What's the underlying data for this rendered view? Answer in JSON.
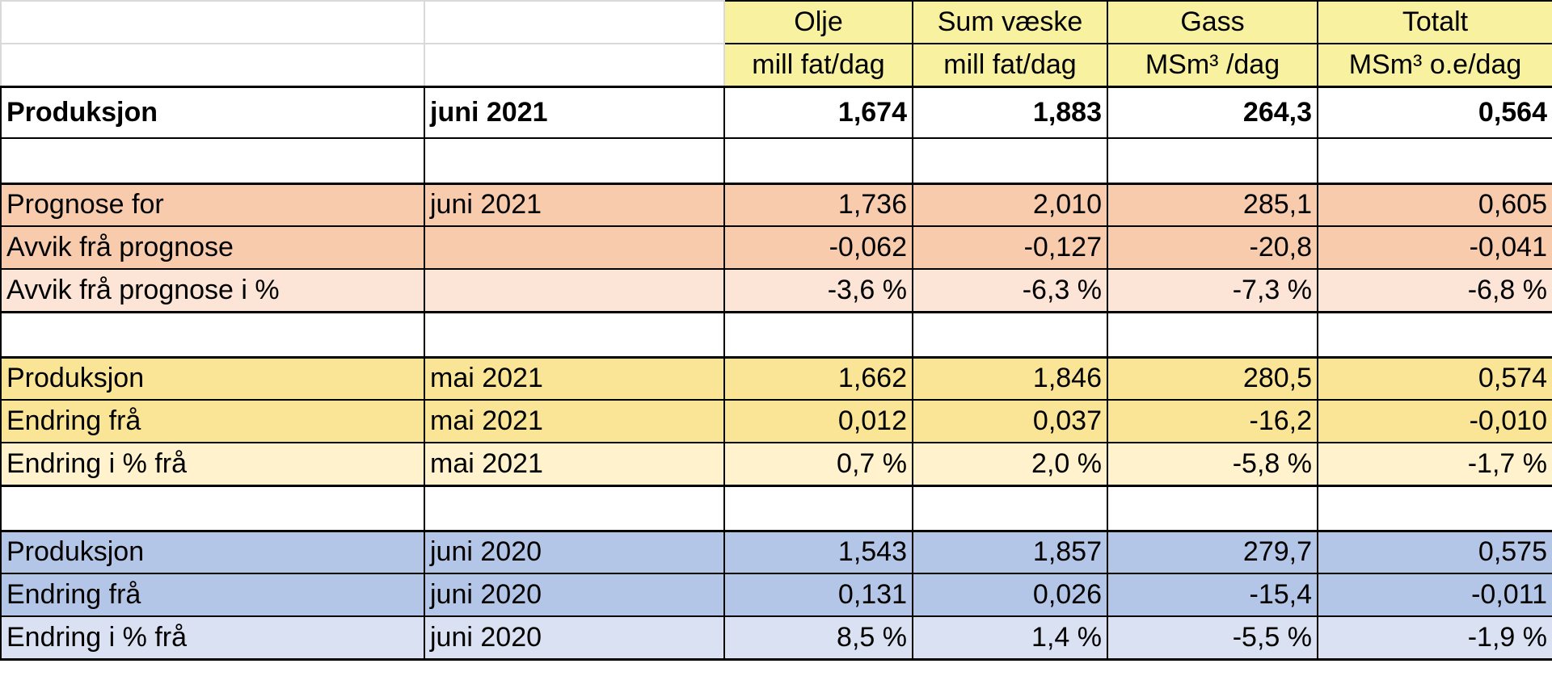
{
  "header": {
    "columns": [
      {
        "name": "Olje",
        "unit": "mill fat/dag"
      },
      {
        "name": "Sum væske",
        "unit": "mill fat/dag"
      },
      {
        "name": "Gass",
        "unit": "MSm³ /dag"
      },
      {
        "name": "Totalt",
        "unit": "MSm³ o.e/dag"
      }
    ]
  },
  "summary": {
    "label": "Produksjon",
    "period": "juni 2021",
    "values": [
      "1,674",
      "1,883",
      "264,3",
      "0,564"
    ]
  },
  "sections": [
    {
      "rows": [
        {
          "label": "Prognose for",
          "period": "juni 2021",
          "values": [
            "1,736",
            "2,010",
            "285,1",
            "0,605"
          ]
        },
        {
          "label": "Avvik frå prognose",
          "values": [
            "-0,062",
            "-0,127",
            "-20,8",
            "-0,041"
          ]
        },
        {
          "label": "Avvik frå prognose i %",
          "values": [
            "-3,6 %",
            "-6,3 %",
            "-7,3 %",
            "-6,8 %"
          ]
        }
      ]
    },
    {
      "rows": [
        {
          "label": "Produksjon",
          "period": "mai 2021",
          "values": [
            "1,662",
            "1,846",
            "280,5",
            "0,574"
          ]
        },
        {
          "label": "Endring frå",
          "period": "mai 2021",
          "values": [
            "0,012",
            "0,037",
            "-16,2",
            "-0,010"
          ]
        },
        {
          "label": "Endring i % frå",
          "period": "mai 2021",
          "values": [
            "0,7 %",
            "2,0 %",
            "-5,8 %",
            "-1,7 %"
          ]
        }
      ]
    },
    {
      "rows": [
        {
          "label": "Produksjon",
          "period": "juni 2020",
          "values": [
            "1,543",
            "1,857",
            "279,7",
            "0,575"
          ]
        },
        {
          "label": "Endring frå",
          "period": "juni 2020",
          "values": [
            "0,131",
            "0,026",
            "-15,4",
            "-0,011"
          ]
        },
        {
          "label": "Endring i % frå",
          "period": "juni 2020",
          "values": [
            "8,5 %",
            "1,4 %",
            "-5,5 %",
            "-1,9 %"
          ]
        }
      ]
    }
  ]
}
